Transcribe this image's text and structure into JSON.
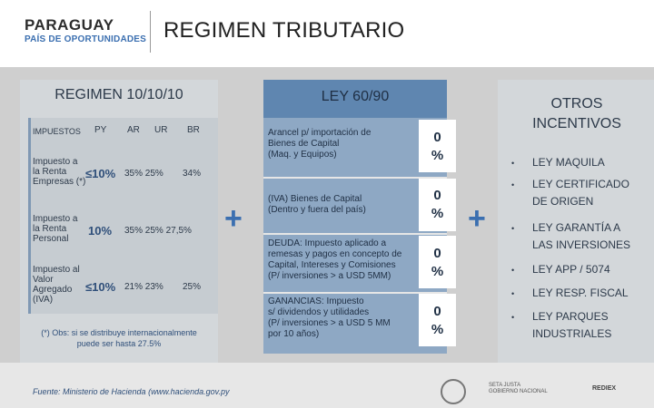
{
  "header": {
    "logo_title": "PARAGUAY",
    "logo_subtitle": "PAÍS DE OPORTUNIDADES",
    "title": "REGIMEN TRIBUTARIO"
  },
  "left": {
    "title": "REGIMEN 10/10/10",
    "columns": {
      "impuestos": "IMPUESTOS",
      "py": "PY",
      "ar": "AR",
      "ur": "UR",
      "br": "BR"
    },
    "rows": [
      {
        "label": [
          "Impuesto a",
          "la Renta",
          "Empresas (*)"
        ],
        "py": "≤10%",
        "ar_ur": "35%  25%",
        "br": "34%"
      },
      {
        "label": [
          "Impuesto a",
          "la Renta",
          "Personal"
        ],
        "py": "10%",
        "ar_ur": "35%  25%  27,5%",
        "br": ""
      },
      {
        "label": [
          "Impuesto al",
          "Valor",
          "Agregado",
          "(IVA)"
        ],
        "py": "≤10%",
        "ar_ur": "21%  23%",
        "br": "25%"
      }
    ],
    "obs": [
      "(*) Obs: si se distribuye internacionalmente",
      "puede ser hasta 27.5%"
    ]
  },
  "plus_symbol": "+",
  "middle": {
    "title": "LEY 60/90",
    "items": [
      {
        "text": [
          "Arancel p/ importación de",
          "Bienes de Capital",
          "(Maq. y Equipos)"
        ],
        "zero": [
          "0",
          "%"
        ]
      },
      {
        "text": [
          "(IVA) Bienes de Capital",
          "(Dentro y fuera del país)"
        ],
        "zero": [
          "0",
          "%"
        ]
      },
      {
        "text": [
          "DEUDA: Impuesto aplicado a",
          "remesas y pagos en concepto de",
          "Capital,  Intereses y Comisiones",
          "(P/ inversiones > a USD 5MM)"
        ],
        "zero": [
          "0",
          "%"
        ]
      },
      {
        "text": [
          "GANANCIAS: Impuesto",
          "s/ dividendos y utilidades",
          "(P/ inversiones > a USD 5 MM",
          "por 10 años)"
        ],
        "zero": [
          "0",
          "%"
        ]
      }
    ]
  },
  "right": {
    "title": [
      "OTROS",
      "INCENTIVOS"
    ],
    "bullet_char": "•",
    "items": [
      [
        "LEY MAQUILA"
      ],
      [
        "LEY CERTIFICADO",
        "DE ORIGEN"
      ],
      [
        "LEY GARANTÍA A",
        "LAS INVERSIONES"
      ],
      [
        "LEY APP / 5074"
      ],
      [
        "LEY RESP. FISCAL"
      ],
      [
        "LEY PARQUES",
        "INDUSTRIALES"
      ]
    ]
  },
  "footer": {
    "fuente": "Fuente: Ministerio de Hacienda (www.hacienda.gov.py",
    "logo_setp": [
      "SETA JUSTA",
      "GOBIERNO NACIONAL"
    ],
    "logo_rediex": "REDIEX"
  },
  "colors": {
    "accent_blue": "#3b6fb0",
    "middle_panel": "#8ea8c4",
    "middle_title": "#5f86b0",
    "side_panels": "#d3d7da"
  }
}
